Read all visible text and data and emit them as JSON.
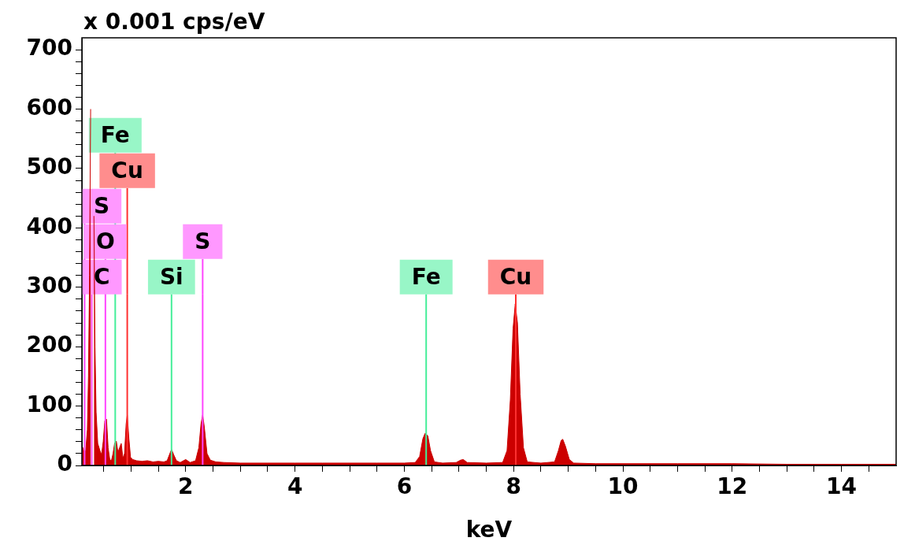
{
  "chart_data": {
    "type": "area",
    "ylabel": "x 0.001 cps/eV",
    "xlabel": "keV",
    "xlim": [
      0.1,
      15
    ],
    "ylim": [
      0,
      720
    ],
    "xticks": [
      {
        "value": 0.5,
        "label": null
      },
      {
        "value": 1,
        "label": null
      },
      {
        "value": 1.5,
        "label": null
      },
      2,
      {
        "value": 2.5,
        "label": null
      },
      {
        "value": 3,
        "label": null
      },
      {
        "value": 3.5,
        "label": null
      },
      4,
      {
        "value": 4.5,
        "label": null
      },
      {
        "value": 5,
        "label": null
      },
      {
        "value": 5.5,
        "label": null
      },
      6,
      {
        "value": 6.5,
        "label": null
      },
      {
        "value": 7,
        "label": null
      },
      {
        "value": 7.5,
        "label": null
      },
      8,
      {
        "value": 8.5,
        "label": null
      },
      {
        "value": 9,
        "label": null
      },
      {
        "value": 9.5,
        "label": null
      },
      10,
      {
        "value": 10.5,
        "label": null
      },
      {
        "value": 11,
        "label": null
      },
      {
        "value": 11.5,
        "label": null
      },
      12,
      {
        "value": 12.5,
        "label": null
      },
      {
        "value": 13,
        "label": null
      },
      {
        "value": 13.5,
        "label": null
      },
      14,
      {
        "value": 14.5,
        "label": null
      }
    ],
    "yticks": [
      0,
      {
        "value": 20,
        "label": null
      },
      {
        "value": 40,
        "label": null
      },
      {
        "value": 60,
        "label": null
      },
      {
        "value": 80,
        "label": null
      },
      100,
      {
        "value": 120,
        "label": null
      },
      {
        "value": 140,
        "label": null
      },
      {
        "value": 160,
        "label": null
      },
      {
        "value": 180,
        "label": null
      },
      200,
      {
        "value": 220,
        "label": null
      },
      {
        "value": 240,
        "label": null
      },
      {
        "value": 260,
        "label": null
      },
      {
        "value": 280,
        "label": null
      },
      300,
      {
        "value": 320,
        "label": null
      },
      {
        "value": 340,
        "label": null
      },
      {
        "value": 360,
        "label": null
      },
      {
        "value": 380,
        "label": null
      },
      400,
      {
        "value": 420,
        "label": null
      },
      {
        "value": 440,
        "label": null
      },
      {
        "value": 460,
        "label": null
      },
      {
        "value": 480,
        "label": null
      },
      500,
      {
        "value": 520,
        "label": null
      },
      {
        "value": 540,
        "label": null
      },
      {
        "value": 560,
        "label": null
      },
      {
        "value": 580,
        "label": null
      },
      600,
      {
        "value": 620,
        "label": null
      },
      {
        "value": 640,
        "label": null
      },
      {
        "value": 660,
        "label": null
      },
      {
        "value": 680,
        "label": null
      },
      700
    ],
    "grid": false,
    "legend": false,
    "marker": "none",
    "series": [
      {
        "color": "#cc0000",
        "x": [
          0.1,
          0.12,
          0.14,
          0.17,
          0.2,
          0.22,
          0.24,
          0.26,
          0.27,
          0.3,
          0.32,
          0.34,
          0.36,
          0.39,
          0.43,
          0.46,
          0.49,
          0.52,
          0.55,
          0.58,
          0.61,
          0.64,
          0.67,
          0.7,
          0.73,
          0.76,
          0.79,
          0.82,
          0.85,
          0.88,
          0.91,
          0.93,
          0.96,
          0.99,
          1.03,
          1.1,
          1.2,
          1.3,
          1.4,
          1.5,
          1.6,
          1.66,
          1.71,
          1.74,
          1.78,
          1.83,
          1.9,
          2.0,
          2.08,
          2.18,
          2.24,
          2.28,
          2.31,
          2.34,
          2.39,
          2.45,
          2.55,
          2.7,
          3.0,
          3.5,
          4.0,
          4.5,
          5.0,
          5.5,
          6.0,
          6.2,
          6.28,
          6.34,
          6.38,
          6.43,
          6.48,
          6.55,
          6.7,
          6.95,
          7.03,
          7.08,
          7.15,
          7.5,
          7.8,
          7.88,
          7.94,
          7.99,
          8.03,
          8.07,
          8.12,
          8.18,
          8.25,
          8.5,
          8.75,
          8.82,
          8.87,
          8.9,
          8.95,
          9.02,
          9.1,
          9.5,
          10,
          11,
          12,
          13,
          14,
          15
        ],
        "values": [
          18,
          30,
          22,
          25,
          60,
          150,
          320,
          600,
          null,
          null,
          420,
          200,
          90,
          37,
          25,
          18,
          40,
          75,
          78,
          30,
          10,
          8,
          20,
          38,
          41,
          22,
          30,
          37,
          12,
          20,
          70,
          85,
          45,
          14,
          10,
          8,
          7,
          8,
          6,
          7,
          6,
          8,
          20,
          27,
          18,
          8,
          5,
          10,
          5,
          8,
          30,
          70,
          85,
          65,
          20,
          9,
          6,
          5,
          4,
          4,
          4,
          4,
          4,
          4,
          4,
          5,
          15,
          45,
          54,
          50,
          25,
          6,
          4,
          5,
          9,
          10,
          5,
          4,
          5,
          25,
          110,
          230,
          272,
          240,
          120,
          30,
          6,
          4,
          6,
          25,
          42,
          44,
          32,
          10,
          4,
          3,
          3,
          3,
          3,
          2,
          2,
          2
        ]
      }
    ],
    "ref_lines": [
      {
        "axis": "x",
        "value": 0.28,
        "label": "C",
        "color": "#ff44ff"
      },
      {
        "axis": "x",
        "value": 1.74,
        "label": "Si",
        "color": "#44ee99"
      },
      {
        "axis": "x",
        "value": 6.4,
        "label": "Fe",
        "color": "#44ee99"
      },
      {
        "axis": "x",
        "value": 8.04,
        "label": "Cu",
        "color": "#ff3030"
      },
      {
        "axis": "x",
        "value": 0.53,
        "label": "O",
        "color": "#ff44ff"
      },
      {
        "axis": "x",
        "value": 2.31,
        "label": "S",
        "color": "#ff44ff"
      },
      {
        "axis": "x",
        "value": 0.15,
        "label": "S",
        "color": "#ff44ff"
      },
      {
        "axis": "x",
        "value": 0.93,
        "label": "Cu",
        "color": "#ff3030"
      },
      {
        "axis": "x",
        "value": 0.71,
        "label": "Fe",
        "color": "#44ee99"
      }
    ]
  }
}
